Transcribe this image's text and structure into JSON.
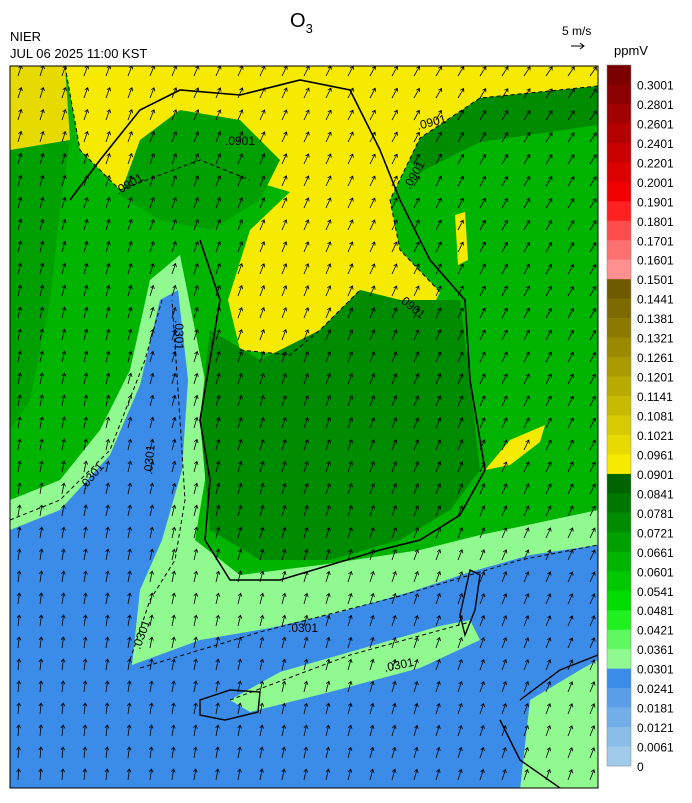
{
  "header": {
    "title": "O",
    "title_subscript": "3",
    "agency": "NIER",
    "timestamp": "JUL 06 2025 11:00 KST",
    "vector_scale": "5 m/s"
  },
  "colorbar": {
    "unit": "ppmV",
    "labels": [
      "0.3001",
      "0.2801",
      "0.2601",
      "0.2401",
      "0.2201",
      "0.2001",
      "0.1901",
      "0.1801",
      "0.1701",
      "0.1601",
      "0.1501",
      "0.1441",
      "0.1381",
      "0.1321",
      "0.1261",
      "0.1201",
      "0.1141",
      "0.1081",
      "0.1021",
      "0.0961",
      "0.0901",
      "0.0841",
      "0.0781",
      "0.0721",
      "0.0661",
      "0.0601",
      "0.0541",
      "0.0481",
      "0.0421",
      "0.0361",
      "0.0301",
      "0.0241",
      "0.0181",
      "0.0121",
      "0.0061",
      "0"
    ],
    "colors": [
      "#7a0000",
      "#8b0000",
      "#a00000",
      "#b40000",
      "#c80000",
      "#dc0000",
      "#f00000",
      "#ff2020",
      "#ff4c4c",
      "#ff7070",
      "#ff9090",
      "#6e5a00",
      "#7d6a00",
      "#8c7a00",
      "#9b8a00",
      "#aa9a00",
      "#b9aa00",
      "#c8ba00",
      "#d7ca00",
      "#e6da00",
      "#f5ea00",
      "#006400",
      "#007800",
      "#008c00",
      "#00a000",
      "#00b400",
      "#00c800",
      "#00dc00",
      "#20f020",
      "#60f860",
      "#90fa90",
      "#3a8ce8",
      "#5a9ee8",
      "#72aee8",
      "#8abee8",
      "#a0cbea"
    ]
  },
  "contour_labels": [
    ".0901",
    ".0901",
    ".0901",
    ".0901",
    ".0901",
    ".0301",
    ".0301",
    ".0301",
    ".0301",
    ".0301",
    ".0301"
  ]
}
